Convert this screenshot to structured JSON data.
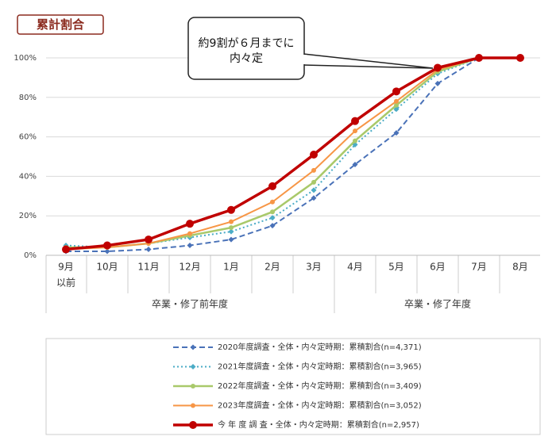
{
  "chart_data": {
    "type": "line",
    "title": "累計割合",
    "annotation": [
      "約9割が６月までに",
      "内々定"
    ],
    "groups": [
      {
        "label": "卒業・修了前年度",
        "categories": [
          "9月",
          "10月",
          "11月",
          "12月",
          "1月",
          "2月",
          "3月"
        ]
      },
      {
        "label": "卒業・修了年度",
        "categories": [
          "4月",
          "5月",
          "6月",
          "7月",
          "8月"
        ]
      }
    ],
    "first_category_note": "以前",
    "ylim": [
      0,
      100
    ],
    "yticks": [
      {
        "value": 0,
        "label": "0%"
      },
      {
        "value": 20,
        "label": "20%"
      },
      {
        "value": 40,
        "label": "40%"
      },
      {
        "value": 60,
        "label": "60%"
      },
      {
        "value": 80,
        "label": "80%"
      },
      {
        "value": 100,
        "label": "100%"
      }
    ],
    "grid": true,
    "series": [
      {
        "name": "2020年度調査・全体・内々定時期：累積割合(n=4,371)",
        "color": "#4a72b8",
        "dash": "dashed",
        "marker": "diamond",
        "width": 2,
        "values": [
          2,
          2,
          3,
          5,
          8,
          15,
          29,
          46,
          62,
          87,
          100,
          100
        ]
      },
      {
        "name": "2021年度調査・全体・内々定時期：累積割合(n=3,965)",
        "color": "#4bacc6",
        "dash": "dotted",
        "marker": "diamond",
        "width": 2,
        "values": [
          5,
          4,
          6,
          9,
          12,
          19,
          33,
          56,
          74,
          92,
          100,
          100
        ]
      },
      {
        "name": "2022年度調査・全体・内々定時期：累積割合(n=3,409)",
        "color": "#a9c96a",
        "dash": "solid",
        "marker": "circle",
        "width": 2.5,
        "values": [
          4,
          4,
          6,
          10,
          14,
          22,
          37,
          58,
          76,
          93,
          100,
          100
        ]
      },
      {
        "name": "2023年度調査・全体・内々定時期：累積割合(n=3,052)",
        "color": "#f79646",
        "dash": "solid",
        "marker": "circle",
        "width": 2,
        "values": [
          3,
          4,
          6,
          11,
          17,
          27,
          43,
          63,
          78,
          94,
          100,
          100
        ]
      },
      {
        "name": "今 年 度 調 査・全体・内々定時期：累積割合(n=2,957)",
        "color": "#c00000",
        "dash": "solid",
        "marker": "bigcircle",
        "width": 3.5,
        "values": [
          3,
          5,
          8,
          16,
          23,
          35,
          51,
          68,
          83,
          95,
          100,
          100
        ]
      }
    ]
  }
}
